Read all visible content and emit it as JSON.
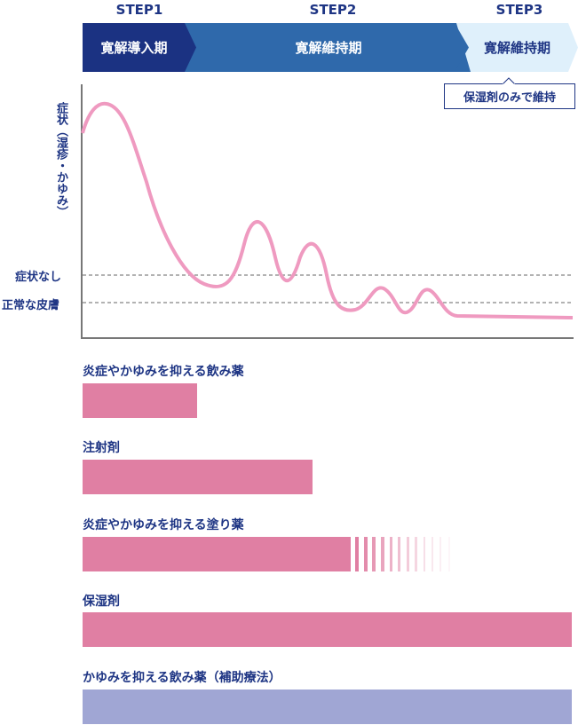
{
  "steps": [
    {
      "step": "STEP1",
      "phase": "寛解導入期"
    },
    {
      "step": "STEP2",
      "phase": "寛解維持期"
    },
    {
      "step": "STEP3",
      "phase": "寛解維持期"
    }
  ],
  "callout": "保湿剤のみで維持",
  "chart": {
    "ylabel": "症状（湿疹・かゆみ）",
    "level_none": "症状なし",
    "level_normal": "正常な皮膚"
  },
  "treatments": [
    {
      "label": "炎症やかゆみを抑える飲み薬",
      "duration": "STEP1"
    },
    {
      "label": "注射剤",
      "duration": "STEP1–STEP2"
    },
    {
      "label": "炎症やかゆみを抑える塗り薬",
      "duration": "STEP1–STEP2 (tapering)"
    },
    {
      "label": "保湿剤",
      "duration": "STEP1–STEP3"
    },
    {
      "label": "かゆみを抑える飲み薬（補助療法）",
      "duration": "STEP1–STEP3"
    }
  ],
  "colors": {
    "step1": "#1b3282",
    "step2": "#2f69ab",
    "step3": "#dff0fb",
    "bar": "#e07fa3",
    "aux": "#a0a6d4",
    "curve": "#ef9ac0"
  }
}
